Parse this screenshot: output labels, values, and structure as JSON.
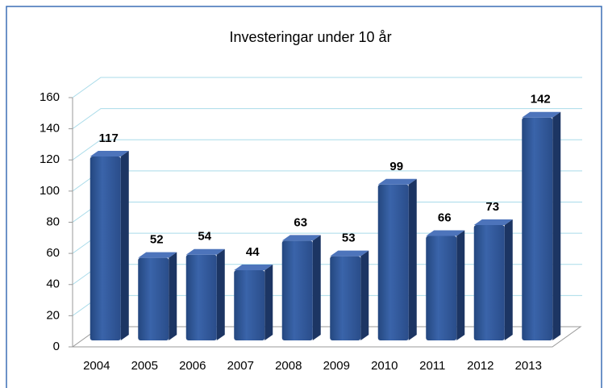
{
  "chart_data": {
    "type": "bar",
    "title": "Investeringar under 10 år",
    "categories": [
      "2004",
      "2005",
      "2006",
      "2007",
      "2008",
      "2009",
      "2010",
      "2011",
      "2012",
      "2013"
    ],
    "values": [
      117,
      52,
      54,
      44,
      63,
      53,
      99,
      66,
      73,
      142
    ],
    "color": "#2f5597",
    "ylim": [
      0,
      160
    ],
    "yticks": [
      0,
      20,
      40,
      60,
      80,
      100,
      120,
      140,
      160
    ],
    "grid": true
  }
}
